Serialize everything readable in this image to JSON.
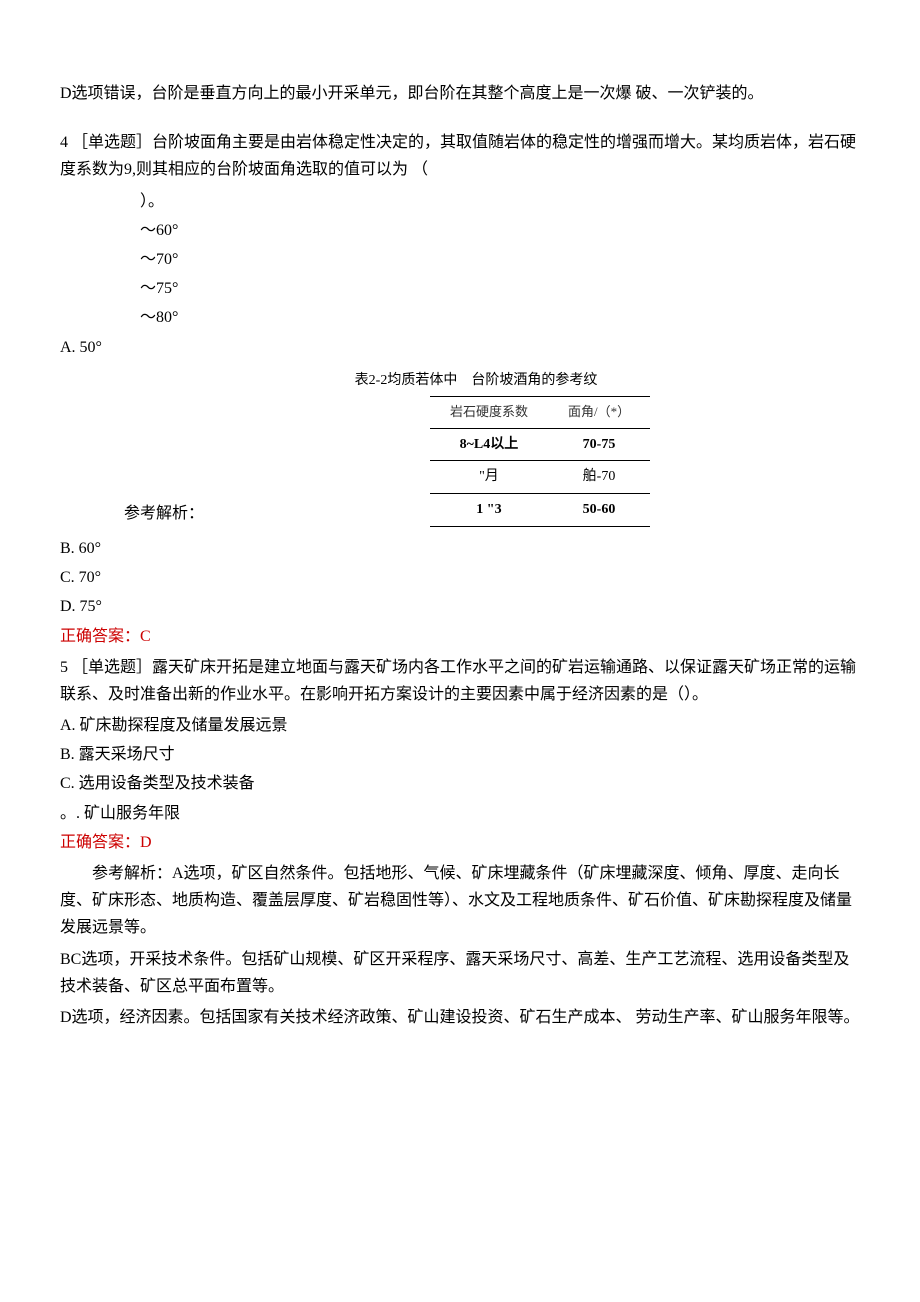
{
  "block1": {
    "p1": "D选项错误，台阶是垂直方向上的最小开采单元，即台阶在其整个高度上是一次爆 破、一次铲装的。"
  },
  "q4": {
    "stem1": "4 ［单选题］台阶坡面角主要是由岩体稳定性决定的，其取值随岩体的稳定性的增强而增大。某均质岩体，岩石硬度系数为9,则其相应的台阶坡面角选取的值可以为 （",
    "stem2": "）。",
    "sub1": "～60°",
    "sub2": "～70°",
    "sub3": "～75°",
    "sub4": "～80°",
    "optA": "A. 50°",
    "optB": "B. 60°",
    "optC": "C. 70°",
    "optD": "D. 75°",
    "answer": "正确答案：C",
    "analysis_label": "参考解析：",
    "table": {
      "title_left": "表2-2均质若体中",
      "title_right": "台阶坡酒角的参考纹",
      "header_left": "岩石硬度系数",
      "header_right": "面角/（*）",
      "rows": [
        [
          "8~L4以上",
          "70-75"
        ],
        [
          "\"月",
          "舶-70"
        ],
        [
          "1 \"3",
          "50-60"
        ]
      ]
    }
  },
  "q5": {
    "stem": "5 ［单选题］露天矿床开拓是建立地面与露天矿场内各工作水平之间的矿岩运输通路、以保证露天矿场正常的运输联系、及时准备出新的作业水平。在影响开拓方案设计的主要因素中属于经济因素的是（）。",
    "optA": "A. 矿床勘探程度及储量发展远景",
    "optB": "B. 露天采场尺寸",
    "optC": "C. 选用设备类型及技术装备",
    "optD": "。. 矿山服务年限",
    "answer": "正确答案：D",
    "a1": "参考解析：A选项，矿区自然条件。包括地形、气候、矿床埋藏条件（矿床埋藏深度、倾角、厚度、走向长度、矿床形态、地质构造、覆盖层厚度、矿岩稳固性等）、水文及工程地质条件、矿石价值、矿床勘探程度及储量发展远景等。",
    "a2": "BC选项，开采技术条件。包括矿山规模、矿区开采程序、露天采场尺寸、高差、生产工艺流程、选用设备类型及技术装备、矿区总平面布置等。",
    "a3": "D选项，经济因素。包括国家有关技术经济政策、矿山建设投资、矿石生产成本、 劳动生产率、矿山服务年限等。"
  }
}
